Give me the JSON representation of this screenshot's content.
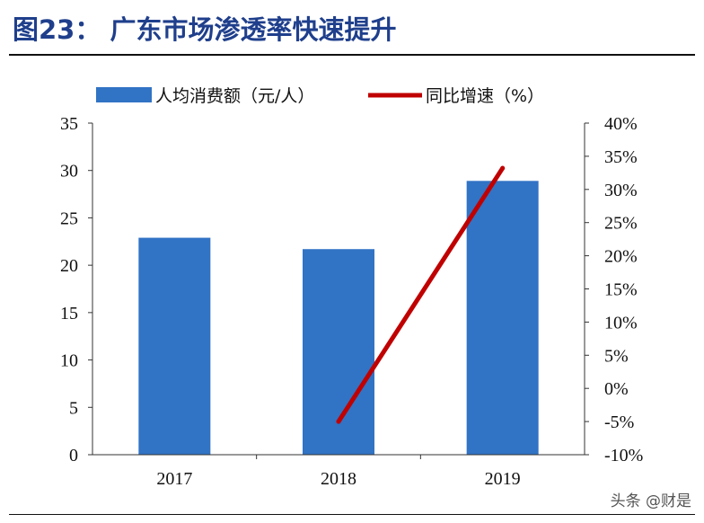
{
  "header": {
    "title": "图23：  广东市场渗透率快速提升",
    "watermark": "头条 @财是"
  },
  "chart_data": {
    "type": "bar",
    "categories": [
      "2017",
      "2018",
      "2019"
    ],
    "series": [
      {
        "name": "人均消费额（元/人）",
        "type": "bar",
        "axis": "left",
        "values": [
          22.9,
          21.7,
          28.9
        ],
        "color": "#3173c5"
      },
      {
        "name": "同比增速（%）",
        "type": "line",
        "axis": "right",
        "values": [
          null,
          -5.0,
          33.2
        ],
        "color": "#c00000"
      }
    ],
    "left_axis": {
      "ylim": [
        0,
        35
      ],
      "ticks": [
        "0",
        "5",
        "10",
        "15",
        "20",
        "25",
        "30",
        "35"
      ]
    },
    "right_axis": {
      "ylim": [
        -10,
        40
      ],
      "ticks": [
        "-10%",
        "-5%",
        "0%",
        "5%",
        "10%",
        "15%",
        "20%",
        "25%",
        "30%",
        "35%",
        "40%"
      ]
    },
    "legend": {
      "position": "top"
    },
    "grid": false
  }
}
